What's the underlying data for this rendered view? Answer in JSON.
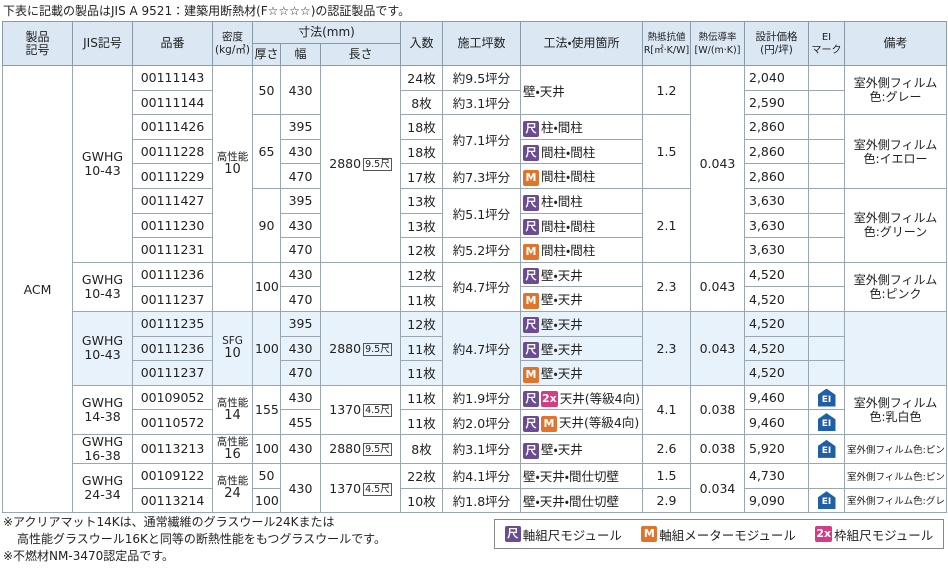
{
  "note": "下表に記載の製品はJIS A 9521：建築用断熱材(F☆☆☆☆)の認証製品です。",
  "header": {
    "product": [
      "製品",
      "記号"
    ],
    "jis": "JIS記号",
    "code": "品番",
    "density": [
      "密度",
      "(kg/㎥)"
    ],
    "size": "寸法(mm)",
    "thickness": "厚さ",
    "width": "幅",
    "length": "長さ",
    "qty": "入数",
    "area": "施工坪数",
    "method": "工法・使用箇所",
    "resistance": [
      "熱抵抗値",
      "R[㎡·K/W]"
    ],
    "conductivity": [
      "熱伝導率",
      "[W/(m·K)]"
    ],
    "price": [
      "設計価格",
      "(円/坪)"
    ],
    "ei": [
      "EI",
      "マーク"
    ],
    "remarks": "備考"
  },
  "table": {
    "rows": [
      {
        "product": "ACM",
        "jis": [
          "GWHG",
          "10-43"
        ],
        "code": "00111143",
        "density": {
          "label": "高性能",
          "value": "10"
        },
        "thickness": "50",
        "width": "430",
        "length": {
          "mm": "2880",
          "shaku": "9.5尺"
        },
        "qty": "24枚",
        "area": "約9.5坪分",
        "method": {
          "text": "壁・天井"
        },
        "resistance": "1.2",
        "conductivity": "0.043",
        "price": "2,040",
        "remarks": [
          "室外側フィルム",
          "色:グレー"
        ]
      },
      {
        "code": "00111144",
        "qty": "8枚",
        "area": "約3.1坪分",
        "price": "2,590"
      },
      {
        "code": "00111426",
        "thickness": "65",
        "width": "395",
        "qty": "18枚",
        "area": "約7.1坪分",
        "method": {
          "icons": [
            "尺"
          ],
          "text": "柱・間柱"
        },
        "resistance": "1.5",
        "price": "2,860",
        "remarks": [
          "室外側フィルム",
          "色:イエロー"
        ]
      },
      {
        "code": "00111228",
        "width": "430",
        "qty": "18枚",
        "method": {
          "icons": [
            "尺"
          ],
          "text": "間柱・間柱"
        },
        "price": "2,860"
      },
      {
        "code": "00111229",
        "width": "470",
        "qty": "17枚",
        "area": "約7.3坪分",
        "method": {
          "icons": [
            "M"
          ],
          "text": "間柱・間柱"
        },
        "price": "2,860"
      },
      {
        "code": "00111427",
        "thickness": "90",
        "width": "395",
        "qty": "13枚",
        "area": "約5.1坪分",
        "method": {
          "icons": [
            "尺"
          ],
          "text": "柱・間柱"
        },
        "resistance": "2.1",
        "price": "3,630",
        "remarks": [
          "室外側フィルム",
          "色:グリーン"
        ]
      },
      {
        "code": "00111230",
        "width": "430",
        "qty": "13枚",
        "method": {
          "icons": [
            "尺"
          ],
          "text": "間柱・間柱"
        },
        "price": "3,630"
      },
      {
        "code": "00111231",
        "width": "470",
        "qty": "12枚",
        "area": "約5.2坪分",
        "method": {
          "icons": [
            "M"
          ],
          "text": "間柱・間柱"
        },
        "price": "3,630"
      },
      {
        "jis": [
          "GWHG",
          "10-43"
        ],
        "code": "00111236",
        "thickness": "100",
        "width": "430",
        "qty": "12枚",
        "area": "約4.7坪分",
        "method": {
          "icons": [
            "尺"
          ],
          "text": "壁・天井"
        },
        "resistance": "2.3",
        "conductivity": "0.043",
        "price": "4,520",
        "remarks": [
          "室外側フィルム",
          "色:ピンク"
        ]
      },
      {
        "code": "00111237",
        "width": "470",
        "qty": "11枚",
        "method": {
          "icons": [
            "M"
          ],
          "text": "壁・天井"
        },
        "price": "4,520"
      },
      {
        "jis": [
          "GWHG",
          "10-43"
        ],
        "code": "00111235",
        "density": {
          "label": "SFG",
          "value": "10"
        },
        "thickness": "100",
        "width": "395",
        "length": {
          "mm": "2880",
          "shaku": "9.5尺"
        },
        "qty": "12枚",
        "area": "約4.7坪分",
        "method": {
          "icons": [
            "尺"
          ],
          "text": "壁・天井"
        },
        "resistance": "2.3",
        "conductivity": "0.043",
        "price": "4,520"
      },
      {
        "code": "00111236",
        "width": "430",
        "qty": "11枚",
        "method": {
          "icons": [
            "尺"
          ],
          "text": "壁・天井"
        },
        "price": "4,520"
      },
      {
        "code": "00111237",
        "width": "470",
        "qty": "11枚",
        "method": {
          "icons": [
            "M"
          ],
          "text": "壁・天井"
        },
        "price": "4,520"
      },
      {
        "jis": [
          "GWHG",
          "14-38"
        ],
        "code": "00109052",
        "density": {
          "label": "高性能",
          "value": "14"
        },
        "thickness": "155",
        "width": "430",
        "length": {
          "mm": "1370",
          "shaku": "4.5尺"
        },
        "qty": "11枚",
        "area": "約1.9坪分",
        "method": {
          "icons": [
            "尺",
            "2x"
          ],
          "text": "天井(等級4向)"
        },
        "resistance": "4.1",
        "conductivity": "0.038",
        "price": "9,460",
        "ei": "EI",
        "remarks": [
          "室外側フィルム",
          "色:乳白色"
        ]
      },
      {
        "code": "00110572",
        "width": "455",
        "qty": "11枚",
        "area": "約2.0坪分",
        "method": {
          "icons": [
            "尺",
            "M"
          ],
          "text": "天井(等級4向)"
        },
        "price": "9,460",
        "ei": "EI"
      },
      {
        "jis": [
          "GWHG",
          "16-38"
        ],
        "code": "00113213",
        "density": {
          "label": "高性能",
          "value": "16"
        },
        "thickness": "100",
        "width": "430",
        "length": {
          "mm": "2880",
          "shaku": "9.5尺"
        },
        "qty": "8枚",
        "area": "約3.1坪分",
        "method": {
          "icons": [
            "尺"
          ],
          "text": "壁・天井"
        },
        "resistance": "2.6",
        "conductivity": "0.038",
        "price": "5,920",
        "ei": "EI",
        "remarks": "室外側フィルム色:ピンク"
      },
      {
        "jis": [
          "GWHG",
          "24-34"
        ],
        "code": "00109122",
        "density": {
          "label": "高性能",
          "value": "24"
        },
        "thickness": "50",
        "width": "430",
        "length": {
          "mm": "1370",
          "shaku": "4.5尺"
        },
        "qty": "22枚",
        "area": "約4.1坪分",
        "method": {
          "text": "壁・天井・間仕切壁"
        },
        "resistance": "1.5",
        "conductivity": "0.034",
        "price": "4,730",
        "remarks": "室外側フィルム色:ピンク"
      },
      {
        "code": "00113214",
        "thickness": "100",
        "qty": "10枚",
        "area": "約1.8坪分",
        "method": {
          "text": "壁・天井・間仕切壁"
        },
        "resistance": "2.9",
        "price": "9,090",
        "ei": "EI",
        "remarks": "室外側フィルム色:グレー"
      }
    ]
  },
  "notes": [
    "※アクリアマット14Kは、通常繊維のグラスウール24Kまたは",
    "高性能グラスウール16Kと同等の断熱性能をもつグラスウールです。",
    "※不燃材NM-3470認定品です。"
  ],
  "legend": [
    {
      "icon": "尺",
      "label": "軸組尺モジュール",
      "color": "#6b4b93"
    },
    {
      "icon": "M",
      "label": "軸組メーターモジュール",
      "color": "#e0742c"
    },
    {
      "icon": "2x",
      "label": "枠組尺モジュール",
      "color": "#d63b85"
    }
  ]
}
